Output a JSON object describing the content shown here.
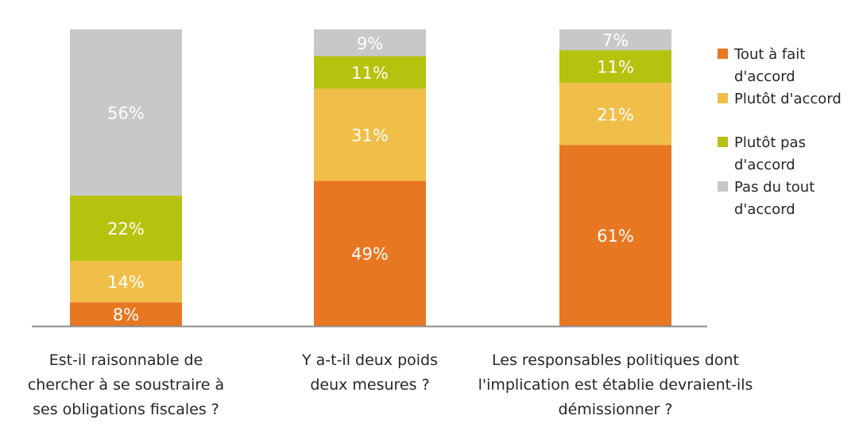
{
  "chart_data": {
    "type": "bar",
    "stacked": true,
    "ylim": [
      0,
      100
    ],
    "grid": false,
    "legend_position": "right",
    "title": "",
    "xlabel": "",
    "ylabel": "",
    "categories": [
      [
        "Est-il raisonnable de",
        "chercher à se soustraire à",
        "ses obligations fiscales ?"
      ],
      [
        "Y a-t-il deux poids",
        "deux mesures ?"
      ],
      [
        "Les responsables politiques dont",
        "l'implication est établie devraient-ils",
        "démissionner ?"
      ]
    ],
    "series": [
      {
        "name": "Tout à fait d'accord",
        "legend_lines": [
          "Tout à fait",
          "d'accord"
        ],
        "color": "#E87722",
        "values": [
          8,
          49,
          61
        ],
        "labels": [
          "8%",
          "49%",
          "61%"
        ]
      },
      {
        "name": "Plutôt d'accord",
        "legend_lines": [
          "Plutôt d'accord"
        ],
        "color": "#F2BE4A",
        "values": [
          14,
          31,
          21
        ],
        "labels": [
          "14%",
          "31%",
          "21%"
        ]
      },
      {
        "name": "Plutôt pas d'accord",
        "legend_lines": [
          "Plutôt pas",
          "d'accord"
        ],
        "color": "#B5C20E",
        "values": [
          22,
          11,
          11
        ],
        "labels": [
          "22%",
          "11%",
          "11%"
        ]
      },
      {
        "name": "Pas du tout d'accord",
        "legend_lines": [
          "Pas du tout",
          "d'accord"
        ],
        "color": "#C8C8C8",
        "values": [
          56,
          9,
          7
        ],
        "labels": [
          "56%",
          "9%",
          "7%"
        ]
      }
    ]
  }
}
